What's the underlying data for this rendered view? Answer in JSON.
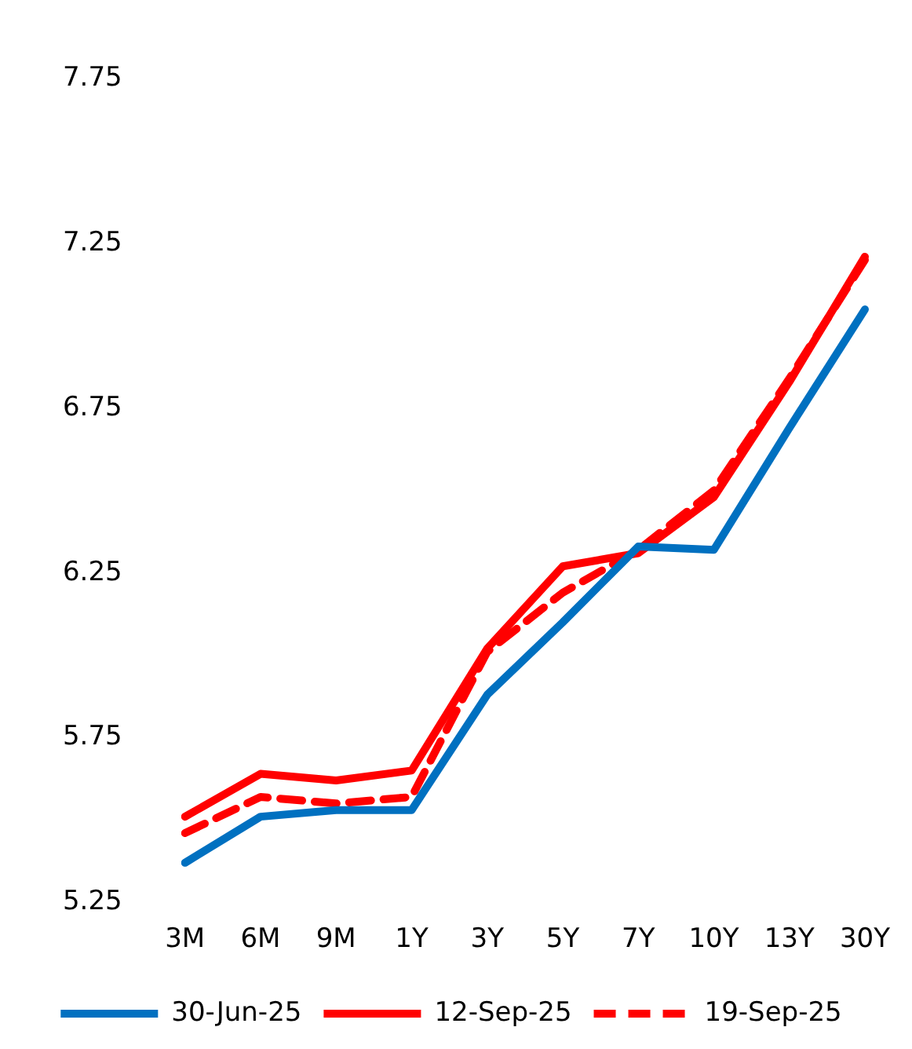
{
  "chart_data": {
    "type": "line",
    "categories": [
      "3M",
      "6M",
      "9M",
      "1Y",
      "3Y",
      "5Y",
      "7Y",
      "10Y",
      "13Y",
      "30Y"
    ],
    "series": [
      {
        "name": "30-Jun-25",
        "color": "#0070c0",
        "values": [
          5.37,
          5.51,
          5.53,
          5.53,
          5.88,
          6.1,
          6.33,
          6.32,
          6.69,
          7.05
        ]
      },
      {
        "name": "12-Sep-25",
        "color": "#ff0000",
        "values": [
          5.51,
          5.64,
          5.62,
          5.65,
          6.02,
          6.27,
          6.31,
          6.48,
          6.83,
          7.21
        ]
      },
      {
        "name": "19-Sep-25",
        "color": "#ff0000",
        "line_style": "dashed",
        "values": [
          5.46,
          5.57,
          5.55,
          5.57,
          6.01,
          6.19,
          6.32,
          6.5,
          6.84,
          7.2
        ]
      }
    ],
    "ylim": [
      5.25,
      7.75
    ],
    "yticks": [
      5.25,
      5.75,
      6.25,
      6.75,
      7.25,
      7.75
    ],
    "grid": false,
    "legend": "bottom",
    "marker": "none",
    "line_style": "solid"
  }
}
